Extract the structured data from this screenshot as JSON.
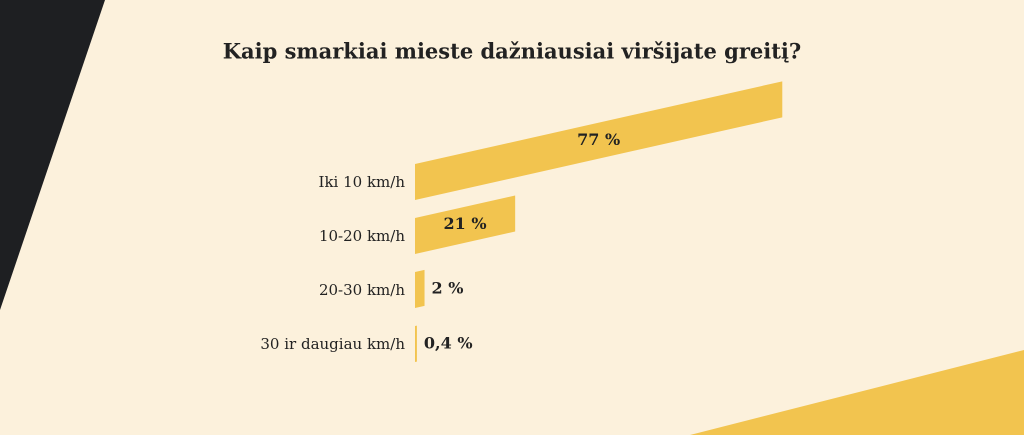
{
  "chart_data": {
    "type": "bar",
    "title": "Kaip smarkiai mieste dažniausiai viršijate greitį?",
    "categories": [
      "Iki 10 km/h",
      "10-20 km/h",
      "20-30 km/h",
      "30 ir daugiau km/h"
    ],
    "values": [
      77,
      21,
      2,
      0.4
    ],
    "value_labels": [
      "77 %",
      "21 %",
      "2 %",
      "0,4 %"
    ],
    "color": "#f2c44f"
  }
}
